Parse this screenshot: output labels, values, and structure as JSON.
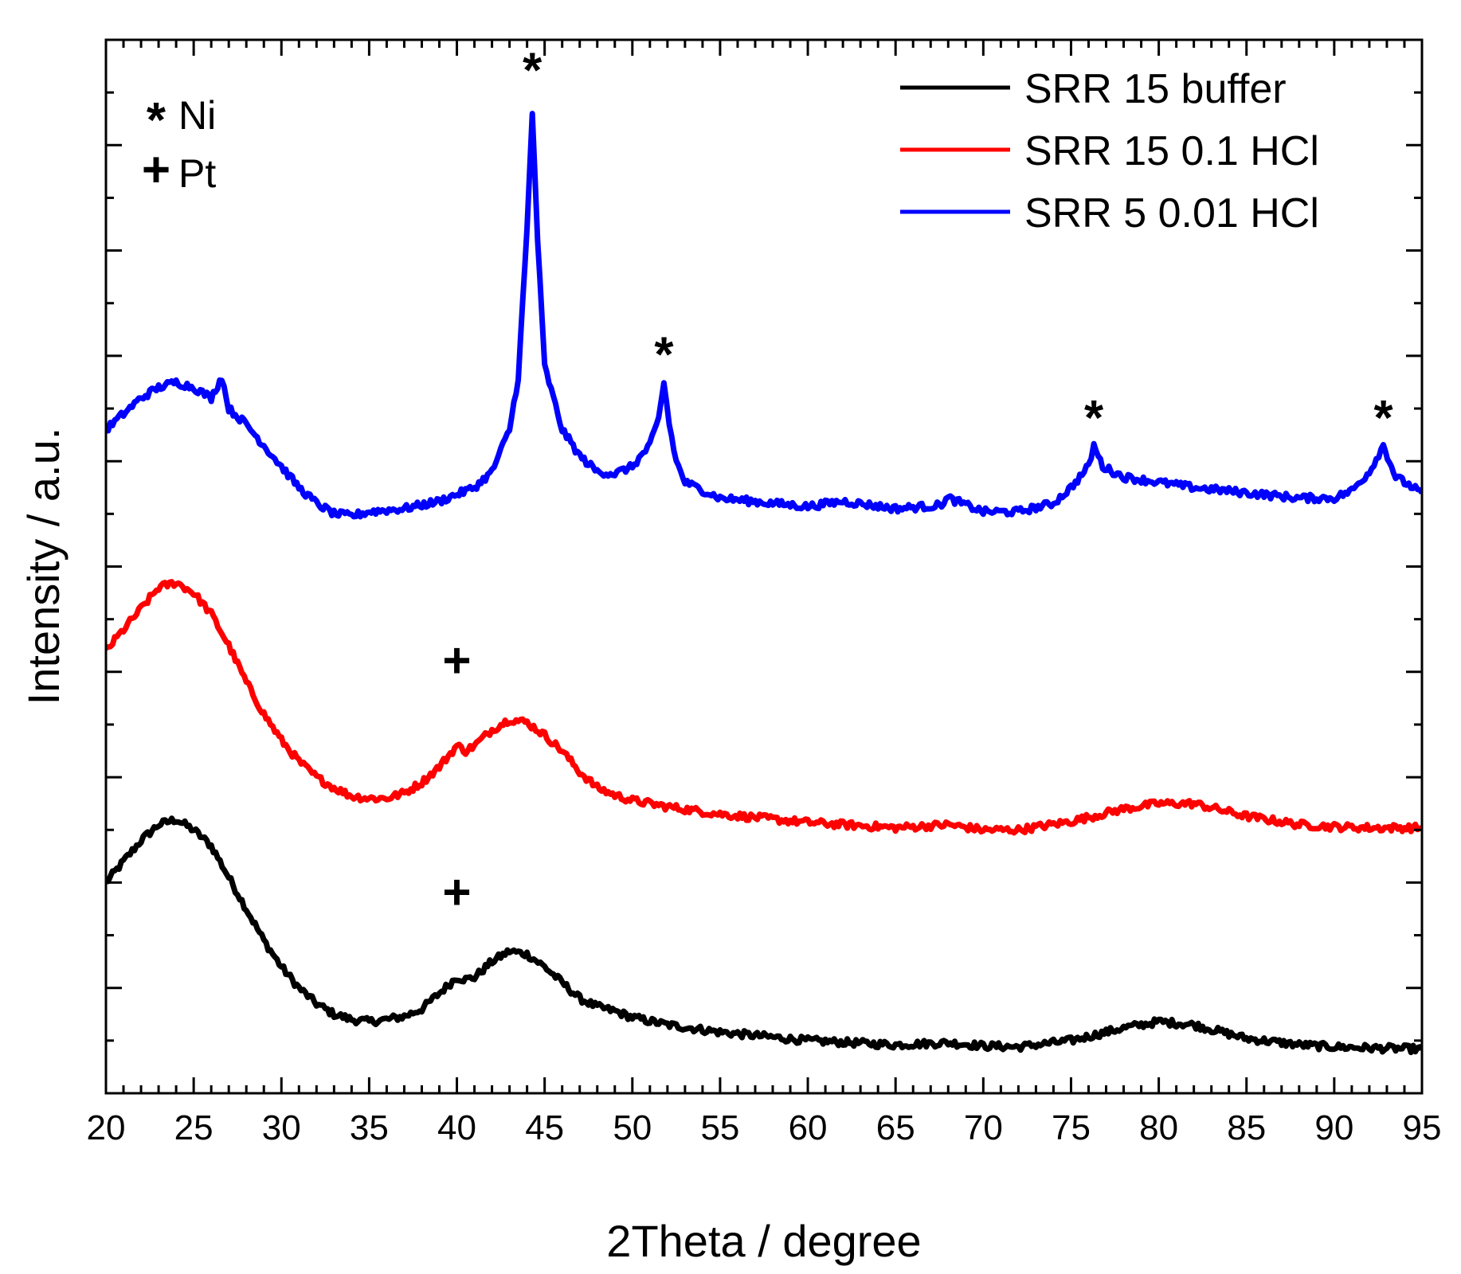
{
  "chart_data": {
    "type": "line",
    "xlabel": "2Theta / degree",
    "ylabel": "Intensity / a.u.",
    "xlim": [
      20,
      95
    ],
    "ylim": [
      0,
      10
    ],
    "x_ticks": [
      "20",
      "25",
      "30",
      "35",
      "40",
      "45",
      "50",
      "55",
      "60",
      "65",
      "70",
      "75",
      "80",
      "85",
      "90",
      "95"
    ],
    "y_tick_labels_shown": false,
    "legend_position": "top-right",
    "marker_key": [
      {
        "symbol": "*",
        "label": "Ni"
      },
      {
        "symbol": "+",
        "label": "Pt"
      }
    ],
    "peak_markers": [
      {
        "symbol": "*",
        "x": 44.3,
        "y": 9.55
      },
      {
        "symbol": "*",
        "x": 51.8,
        "y": 6.85
      },
      {
        "symbol": "*",
        "x": 76.3,
        "y": 6.25
      },
      {
        "symbol": "*",
        "x": 92.8,
        "y": 6.25
      },
      {
        "symbol": "+",
        "x": 40.0,
        "y": 3.95
      },
      {
        "symbol": "+",
        "x": 40.0,
        "y": 1.75
      }
    ],
    "series": [
      {
        "name": "SRR 15 buffer",
        "color": "#000000",
        "x": [
          20,
          21,
          22,
          23,
          24,
          25,
          26,
          27,
          28,
          29,
          30,
          31,
          32,
          33,
          34,
          35,
          36,
          37,
          38,
          39,
          40,
          40.5,
          41,
          42,
          43,
          44,
          45,
          46,
          47,
          48,
          49,
          50,
          52,
          55,
          60,
          65,
          68,
          70,
          72,
          75,
          78,
          80,
          82,
          85,
          88,
          90,
          92,
          95
        ],
        "y": [
          2.0,
          2.2,
          2.4,
          2.55,
          2.6,
          2.5,
          2.35,
          2.05,
          1.75,
          1.45,
          1.2,
          1.0,
          0.85,
          0.75,
          0.7,
          0.68,
          0.7,
          0.73,
          0.8,
          0.95,
          1.1,
          1.08,
          1.1,
          1.25,
          1.35,
          1.32,
          1.2,
          1.05,
          0.9,
          0.82,
          0.78,
          0.72,
          0.65,
          0.58,
          0.5,
          0.46,
          0.48,
          0.45,
          0.44,
          0.5,
          0.62,
          0.68,
          0.65,
          0.52,
          0.46,
          0.44,
          0.43,
          0.42
        ]
      },
      {
        "name": "SRR 15 0.1 HCl",
        "color": "#ff0000",
        "x": [
          20,
          21,
          22,
          23,
          24,
          25,
          26,
          27,
          28,
          29,
          30,
          31,
          32,
          33,
          34,
          35,
          36,
          37,
          38,
          39,
          40,
          40.5,
          41,
          42,
          43,
          44,
          45,
          46,
          47,
          48,
          49,
          50,
          52,
          55,
          60,
          65,
          68,
          70,
          72,
          75,
          78,
          80,
          82,
          85,
          88,
          90,
          92,
          95
        ],
        "y": [
          4.2,
          4.4,
          4.6,
          4.8,
          4.85,
          4.75,
          4.55,
          4.25,
          3.9,
          3.6,
          3.35,
          3.15,
          3.0,
          2.9,
          2.82,
          2.8,
          2.8,
          2.85,
          2.95,
          3.1,
          3.3,
          3.25,
          3.3,
          3.45,
          3.55,
          3.52,
          3.4,
          3.25,
          3.05,
          2.9,
          2.83,
          2.78,
          2.72,
          2.65,
          2.57,
          2.52,
          2.55,
          2.5,
          2.5,
          2.58,
          2.7,
          2.75,
          2.75,
          2.63,
          2.55,
          2.53,
          2.52,
          2.52
        ]
      },
      {
        "name": "SRR 5 0.01 HCl",
        "color": "#0000ff",
        "x": [
          20,
          21,
          22,
          23,
          24,
          25,
          26,
          26.6,
          27,
          28,
          29,
          30,
          31,
          32,
          33,
          34,
          35,
          37,
          39,
          41,
          42,
          43,
          43.5,
          44,
          44.3,
          44.6,
          45,
          46,
          47,
          48,
          49,
          50,
          51,
          51.5,
          51.8,
          52.1,
          52.5,
          53,
          55,
          58,
          60,
          62,
          65,
          67.5,
          68,
          70,
          72,
          74,
          75,
          76,
          76.3,
          76.8,
          78,
          80,
          82,
          85,
          88,
          90,
          91,
          92,
          92.8,
          93.5,
          95
        ],
        "y": [
          6.3,
          6.45,
          6.6,
          6.7,
          6.75,
          6.7,
          6.6,
          6.8,
          6.5,
          6.35,
          6.15,
          5.95,
          5.75,
          5.6,
          5.5,
          5.48,
          5.52,
          5.55,
          5.62,
          5.75,
          5.9,
          6.3,
          6.8,
          8.2,
          9.3,
          8.1,
          6.9,
          6.3,
          6.05,
          5.9,
          5.88,
          5.95,
          6.15,
          6.4,
          6.75,
          6.35,
          6.0,
          5.8,
          5.65,
          5.6,
          5.57,
          5.62,
          5.55,
          5.58,
          5.65,
          5.52,
          5.52,
          5.6,
          5.75,
          5.95,
          6.15,
          5.95,
          5.85,
          5.8,
          5.75,
          5.7,
          5.65,
          5.65,
          5.72,
          5.9,
          6.15,
          5.85,
          5.7
        ]
      }
    ]
  }
}
